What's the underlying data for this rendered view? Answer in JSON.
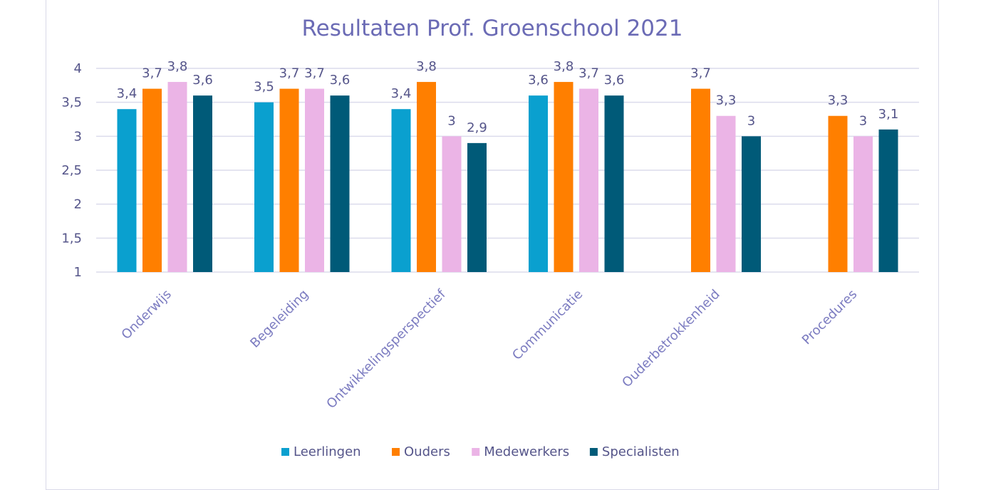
{
  "chart_data": {
    "type": "bar",
    "title": "Resultaten Prof. Groenschool 2021",
    "xlabel": "",
    "ylabel": "",
    "ylim": [
      1,
      4
    ],
    "yticks": [
      "1",
      "1,5",
      "2",
      "2,5",
      "3",
      "3,5",
      "4"
    ],
    "categories": [
      "Onderwijs",
      "Begeleiding",
      "Ontwikkelingsperspectief",
      "Communicatie",
      "Ouderbetrokkenheid",
      "Procedures"
    ],
    "series": [
      {
        "name": "Leerlingen",
        "color": "#0aa0cf",
        "values": [
          3.4,
          3.5,
          3.4,
          3.6,
          null,
          null
        ],
        "labels": [
          "3,4",
          "3,5",
          "3,4",
          "3,6",
          "",
          ""
        ]
      },
      {
        "name": "Ouders",
        "color": "#ff7f00",
        "values": [
          3.7,
          3.7,
          3.8,
          3.8,
          3.7,
          3.3
        ],
        "labels": [
          "3,7",
          "3,7",
          "3,8",
          "3,8",
          "3,7",
          "3,3"
        ]
      },
      {
        "name": "Medewerkers",
        "color": "#ebb4e6",
        "values": [
          3.8,
          3.7,
          3.0,
          3.7,
          3.3,
          3.0
        ],
        "labels": [
          "3,8",
          "3,7",
          "3",
          "3,7",
          "3,3",
          "3"
        ]
      },
      {
        "name": "Specialisten",
        "color": "#005a78",
        "values": [
          3.6,
          3.6,
          2.9,
          3.6,
          3.0,
          3.1
        ],
        "labels": [
          "3,6",
          "3,6",
          "2,9",
          "3,6",
          "3",
          "3,1"
        ]
      }
    ],
    "grid": true,
    "legend_position": "bottom"
  }
}
